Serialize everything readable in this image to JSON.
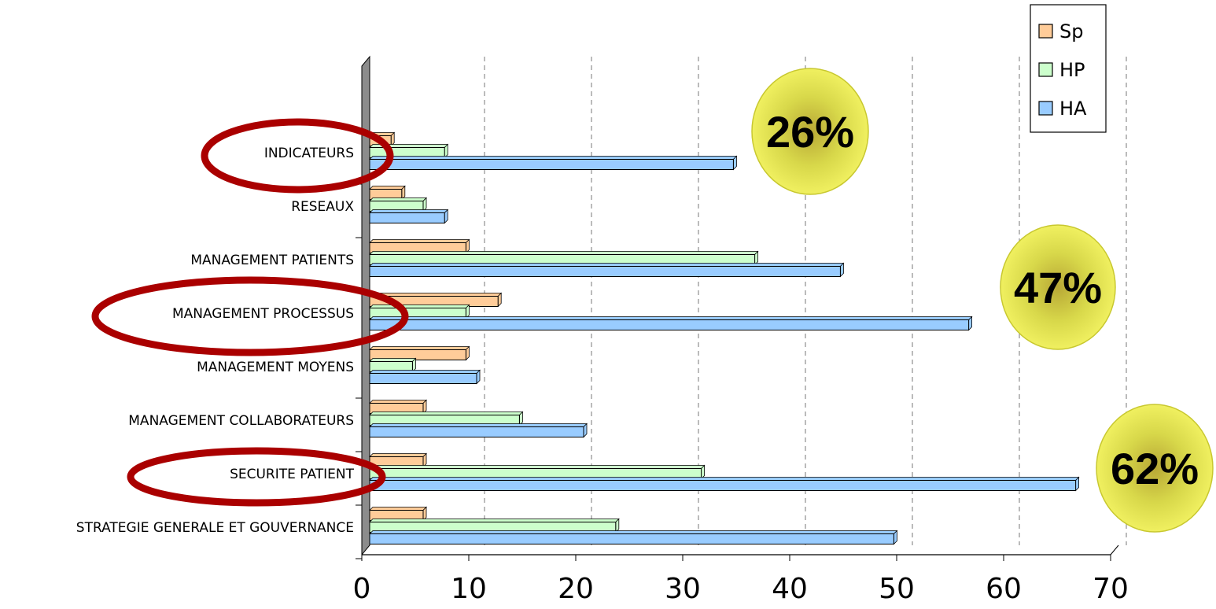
{
  "chart_data": {
    "type": "bar",
    "orientation": "horizontal",
    "categories": [
      "STRATEGIE GENERALE ET GOUVERNANCE",
      "SECURITE PATIENT",
      "MANAGEMENT COLLABORATEURS",
      "MANAGEMENT MOYENS",
      "MANAGEMENT PROCESSUS",
      "MANAGEMENT PATIENTS",
      "RESEAUX",
      "INDICATEURS"
    ],
    "series": [
      {
        "name": "Sp",
        "color": "#ffcc99",
        "values": [
          5,
          5,
          5,
          9,
          12,
          9,
          3,
          2
        ]
      },
      {
        "name": "HP",
        "color": "#ccffcc",
        "values": [
          23,
          31,
          14,
          4,
          9,
          36,
          5,
          7
        ]
      },
      {
        "name": "HA",
        "color": "#99ccff",
        "values": [
          49,
          66,
          20,
          10,
          56,
          44,
          7,
          34
        ]
      }
    ],
    "xlim": [
      0,
      70
    ],
    "xticks": [
      "0",
      "10",
      "20",
      "30",
      "40",
      "50",
      "60",
      "70"
    ],
    "grid": "vertical-dashed",
    "legend_position": "top-right",
    "annotations": [
      {
        "text": "26%",
        "near": "INDICATEURS"
      },
      {
        "text": "47%",
        "near": "MANAGEMENT PROCESSUS"
      },
      {
        "text": "62%",
        "near": "SECURITE PATIENT"
      }
    ],
    "highlighted_categories": [
      "INDICATEURS",
      "MANAGEMENT PROCESSUS",
      "SECURITE PATIENT"
    ],
    "highlight_color": "#aa0000",
    "badge_color": "#e8e850"
  }
}
